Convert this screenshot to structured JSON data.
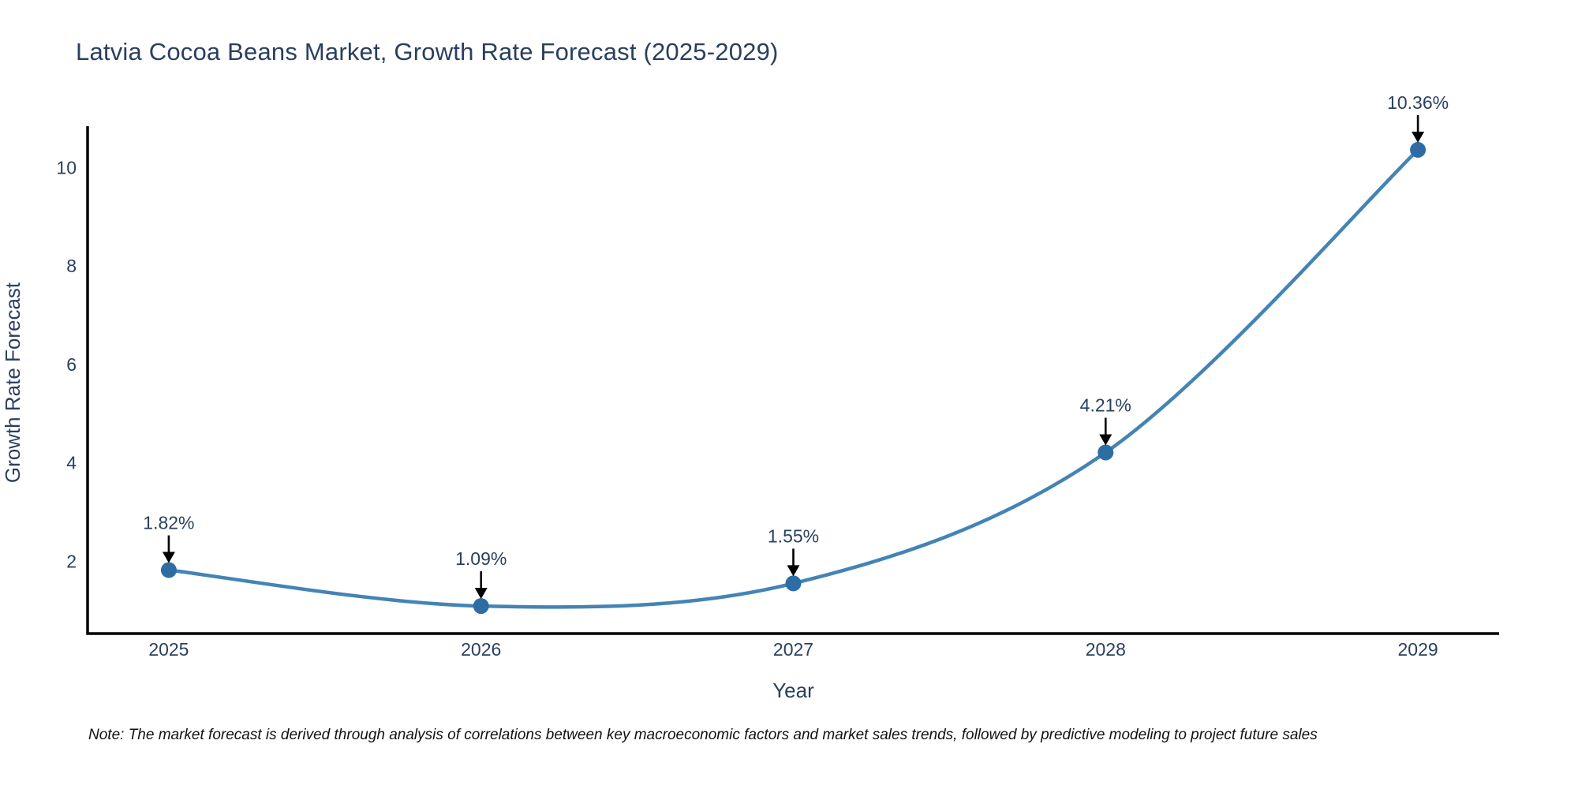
{
  "chart_data": {
    "type": "line",
    "title": "Latvia Cocoa Beans Market, Growth Rate Forecast (2025-2029)",
    "xlabel": "Year",
    "ylabel": "Growth Rate Forecast",
    "x": [
      2025,
      2026,
      2027,
      2028,
      2029
    ],
    "values": [
      1.82,
      1.09,
      1.55,
      4.21,
      10.36
    ],
    "point_labels": [
      "1.82%",
      "1.09%",
      "1.55%",
      "4.21%",
      "10.36%"
    ],
    "yticks": [
      2,
      4,
      6,
      8,
      10
    ],
    "xticks": [
      "2025",
      "2026",
      "2027",
      "2028",
      "2029"
    ],
    "xlim": [
      2024.74,
      2029.26
    ],
    "ylim": [
      0.53,
      10.84
    ],
    "grid": false,
    "legend": "none",
    "line_shape": "spline",
    "colors": {
      "line": "#4484b5",
      "marker": "#2e6da4",
      "text": "#2a3f5f",
      "axis": "#000000",
      "arrow": "#000000"
    },
    "note": "Note: The market forecast is derived through analysis of correlations between key macroeconomic factors and market sales trends, followed by predictive modeling to project future sales"
  }
}
